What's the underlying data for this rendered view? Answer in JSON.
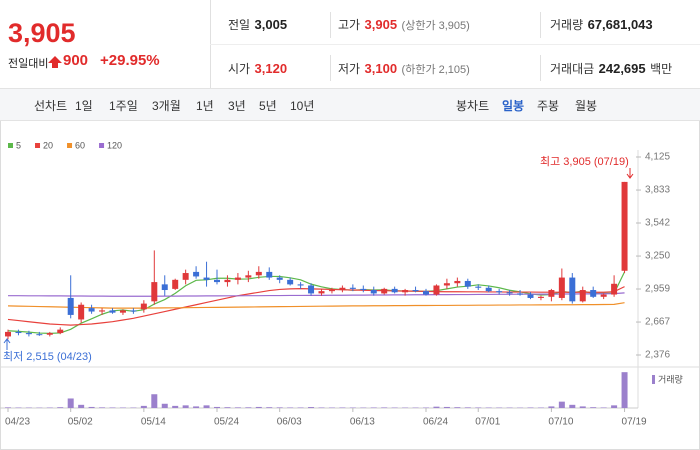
{
  "header": {
    "price": "3,905",
    "change_label": "전일대비",
    "change": "900",
    "change_pct": "+29.95%",
    "stats": [
      {
        "label": "전일",
        "value": "3,005"
      },
      {
        "label": "고가",
        "value": "3,905",
        "note": "(상한가 3,905)"
      },
      {
        "label": "거래량",
        "value": "67,681,043"
      },
      {
        "label": "시가",
        "value": "3,120"
      },
      {
        "label": "저가",
        "value": "3,100",
        "note": "(하한가 2,105)"
      },
      {
        "label": "거래대금",
        "value": "242,695",
        "unit": "백만"
      }
    ]
  },
  "toolbar": {
    "line_label": "선차트",
    "line_periods": [
      "1일",
      "1주일",
      "3개월",
      "1년",
      "3년",
      "5년",
      "10년"
    ],
    "candle_label": "봉차트",
    "candle_periods": [
      "일봉",
      "주봉",
      "월봉"
    ]
  },
  "chart_data": [
    {
      "type": "candlestick",
      "categories": [
        "04/23",
        null,
        null,
        null,
        null,
        null,
        "05/02",
        null,
        null,
        null,
        null,
        null,
        null,
        "05/14",
        null,
        null,
        null,
        null,
        null,
        null,
        "05/24",
        null,
        null,
        null,
        null,
        null,
        "06/03",
        null,
        null,
        null,
        null,
        null,
        null,
        "06/13",
        null,
        null,
        null,
        null,
        null,
        null,
        "06/24",
        null,
        null,
        null,
        null,
        "07/01",
        null,
        null,
        null,
        null,
        null,
        null,
        "07/10",
        null,
        null,
        null,
        null,
        null,
        null,
        "07/19"
      ],
      "open": [
        2540,
        2580,
        2570,
        2560,
        2555,
        2570,
        2880,
        2690,
        2790,
        2760,
        2770,
        2750,
        2770,
        2780,
        2850,
        3000,
        2960,
        3040,
        3110,
        3060,
        3040,
        3020,
        3040,
        3060,
        3080,
        3110,
        3060,
        3040,
        3000,
        2990,
        2920,
        2940,
        2950,
        2970,
        2960,
        2950,
        2920,
        2960,
        2930,
        2950,
        2940,
        2910,
        2990,
        3010,
        3030,
        2980,
        2970,
        2940,
        2930,
        2920,
        2910,
        2880,
        2890,
        2880,
        3060,
        2850,
        2950,
        2890,
        2910,
        3120
      ],
      "high": [
        2600,
        2600,
        2590,
        2580,
        2580,
        2620,
        3080,
        2840,
        2820,
        2790,
        2790,
        2780,
        2790,
        2860,
        3300,
        3080,
        3050,
        3130,
        3160,
        3200,
        3130,
        3080,
        3100,
        3120,
        3160,
        3150,
        3080,
        3060,
        3020,
        3010,
        2960,
        2970,
        2990,
        3000,
        2990,
        2980,
        2970,
        2980,
        2960,
        2980,
        2960,
        3000,
        3050,
        3060,
        3050,
        3000,
        2990,
        2960,
        2950,
        2950,
        2930,
        2900,
        2960,
        3140,
        3100,
        2980,
        2980,
        2920,
        3080,
        3905
      ],
      "low": [
        2515,
        2550,
        2540,
        2545,
        2540,
        2560,
        2700,
        2660,
        2740,
        2730,
        2740,
        2730,
        2740,
        2750,
        2820,
        2900,
        2950,
        3000,
        3050,
        2980,
        3000,
        2980,
        3000,
        3020,
        3050,
        3040,
        3010,
        2990,
        2960,
        2900,
        2900,
        2920,
        2930,
        2940,
        2930,
        2900,
        2910,
        2920,
        2900,
        2930,
        2900,
        2900,
        2960,
        2980,
        2960,
        2950,
        2930,
        2910,
        2900,
        2900,
        2870,
        2860,
        2850,
        2860,
        2830,
        2840,
        2880,
        2870,
        2890,
        3100
      ],
      "close": [
        2580,
        2570,
        2560,
        2555,
        2570,
        2600,
        2730,
        2820,
        2760,
        2770,
        2750,
        2770,
        2760,
        2830,
        3020,
        2950,
        3040,
        3100,
        3070,
        3040,
        3020,
        3040,
        3060,
        3080,
        3110,
        3060,
        3040,
        3000,
        2990,
        2920,
        2940,
        2950,
        2970,
        2960,
        2950,
        2920,
        2960,
        2930,
        2950,
        2940,
        2910,
        2990,
        3010,
        3030,
        2980,
        2970,
        2940,
        2930,
        2920,
        2910,
        2880,
        2890,
        2950,
        3060,
        2850,
        2950,
        2890,
        2910,
        3005,
        3905
      ],
      "up_color": "#e0383a",
      "down_color": "#3b6fd6",
      "series": [
        {
          "name": "5",
          "color": "#5cb84a",
          "values": [
            2590,
            2585,
            2578,
            2570,
            2567,
            2571,
            2603,
            2657,
            2696,
            2736,
            2766,
            2774,
            2762,
            2776,
            2826,
            2866,
            2920,
            2988,
            3036,
            3040,
            3054,
            3054,
            3046,
            3048,
            3062,
            3070,
            3070,
            3058,
            3040,
            3002,
            2978,
            2960,
            2954,
            2948,
            2954,
            2950,
            2952,
            2944,
            2942,
            2940,
            2938,
            2944,
            2960,
            2976,
            2984,
            2996,
            2986,
            2970,
            2948,
            2934,
            2916,
            2906,
            2910,
            2938,
            2926,
            2940,
            2920,
            2922,
            2921,
            3110
          ]
        },
        {
          "name": "20",
          "color": "#e8413c",
          "values": [
            2690,
            2680,
            2670,
            2660,
            2650,
            2645,
            2640,
            2645,
            2650,
            2660,
            2670,
            2685,
            2700,
            2720,
            2740,
            2760,
            2780,
            2800,
            2820,
            2840,
            2860,
            2880,
            2900,
            2915,
            2930,
            2945,
            2955,
            2960,
            2962,
            2960,
            2958,
            2955,
            2952,
            2950,
            2948,
            2946,
            2944,
            2942,
            2940,
            2940,
            2938,
            2936,
            2935,
            2935,
            2934,
            2934,
            2933,
            2933,
            2932,
            2932,
            2932,
            2931,
            2931,
            2930,
            2930,
            2930,
            2930,
            2930,
            2935,
            2980
          ]
        },
        {
          "name": "60",
          "color": "#f0902a",
          "values": [
            2810,
            2808,
            2806,
            2804,
            2802,
            2800,
            2798,
            2796,
            2794,
            2792,
            2790,
            2790,
            2790,
            2790,
            2791,
            2792,
            2793,
            2794,
            2795,
            2796,
            2797,
            2798,
            2799,
            2800,
            2801,
            2802,
            2803,
            2804,
            2805,
            2806,
            2807,
            2808,
            2809,
            2810,
            2810,
            2811,
            2811,
            2812,
            2812,
            2813,
            2813,
            2814,
            2814,
            2815,
            2815,
            2816,
            2816,
            2817,
            2817,
            2818,
            2818,
            2819,
            2819,
            2820,
            2820,
            2821,
            2821,
            2822,
            2823,
            2838
          ]
        },
        {
          "name": "120",
          "color": "#9a6cd0",
          "values": [
            2900,
            2900,
            2899,
            2899,
            2898,
            2898,
            2897,
            2897,
            2896,
            2896,
            2895,
            2895,
            2895,
            2895,
            2895,
            2896,
            2896,
            2897,
            2897,
            2898,
            2898,
            2899,
            2899,
            2900,
            2900,
            2901,
            2901,
            2902,
            2902,
            2903,
            2903,
            2904,
            2904,
            2905,
            2905,
            2906,
            2906,
            2907,
            2907,
            2908,
            2908,
            2909,
            2909,
            2910,
            2910,
            2911,
            2911,
            2912,
            2912,
            2913,
            2913,
            2914,
            2914,
            2915,
            2915,
            2916,
            2916,
            2917,
            2918,
            2925
          ]
        }
      ],
      "ylim": [
        2376,
        4125
      ],
      "yticks": [
        {
          "value": 2376,
          "label": "2,376"
        },
        {
          "value": 2667,
          "label": "2,667"
        },
        {
          "value": 2959,
          "label": "2,959"
        },
        {
          "value": 3250,
          "label": "3,250"
        },
        {
          "value": 3542,
          "label": "3,542"
        },
        {
          "value": 3833,
          "label": "3,833"
        },
        {
          "value": 4125,
          "label": "4,125"
        }
      ],
      "grid": false,
      "annotations": [
        "최고 3,905 (07/19)",
        "최저 2,515 (04/23)"
      ]
    },
    {
      "type": "bar",
      "name": "거래량",
      "color": "#9b80cc",
      "values": [
        1200000,
        900000,
        800000,
        700000,
        900000,
        1500000,
        18000000,
        6000000,
        2000000,
        1200000,
        1000000,
        900000,
        800000,
        4000000,
        26000000,
        8000000,
        4000000,
        5000000,
        3000000,
        5000000,
        2000000,
        1500000,
        1200000,
        1300000,
        2000000,
        1500000,
        1200000,
        1000000,
        1000000,
        1800000,
        1000000,
        900000,
        1000000,
        900000,
        800000,
        1000000,
        1100000,
        900000,
        800000,
        800000,
        900000,
        2500000,
        2000000,
        1500000,
        1200000,
        1000000,
        900000,
        800000,
        800000,
        700000,
        1000000,
        900000,
        3000000,
        12000000,
        6000000,
        3000000,
        1500000,
        1000000,
        5000000,
        67681043
      ],
      "ylim": [
        0,
        68000000
      ]
    }
  ]
}
